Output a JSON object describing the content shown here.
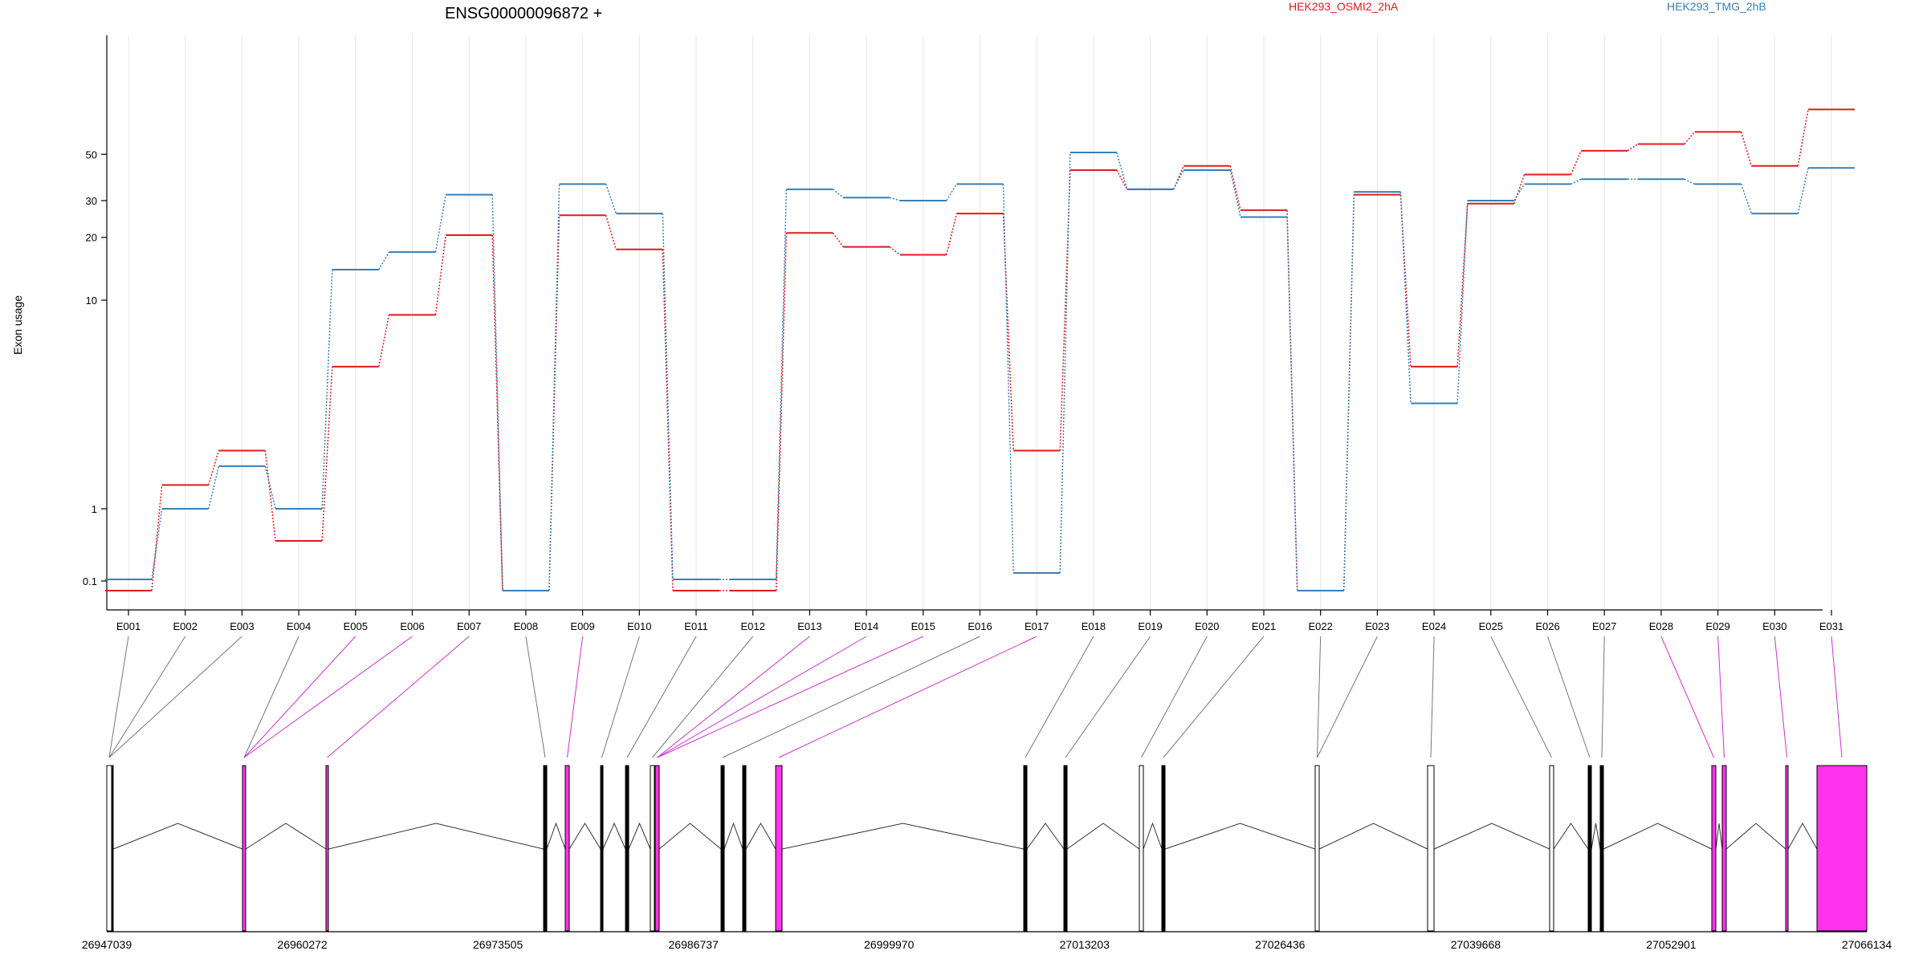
{
  "chart_data": {
    "type": "line",
    "title": "ENSG00000096872 +",
    "ylabel": "Exon usage",
    "y_scale": "log",
    "y_ticks": [
      0.1,
      1,
      10,
      20,
      30,
      50
    ],
    "categories": [
      "E001",
      "E002",
      "E003",
      "E004",
      "E005",
      "E006",
      "E007",
      "E008",
      "E009",
      "E010",
      "E011",
      "E012",
      "E013",
      "E014",
      "E015",
      "E016",
      "E017",
      "E018",
      "E019",
      "E020",
      "E021",
      "E022",
      "E023",
      "E024",
      "E025",
      "E026",
      "E027",
      "E028",
      "E029",
      "E030",
      "E031"
    ],
    "series": [
      {
        "name": "HEK293_OSMI2_2hA",
        "color": "#e41a1c",
        "values": [
          0.0,
          1.3,
          1.9,
          0.6,
          4.8,
          8.5,
          20.5,
          0.0,
          25.5,
          17.5,
          0.0,
          0.0,
          21,
          18,
          16.5,
          26,
          1.9,
          42,
          34,
          44,
          27,
          0.0,
          32,
          4.8,
          29,
          40,
          52,
          56,
          64,
          44,
          82
        ]
      },
      {
        "name": "HEK293_TMG_2hB",
        "color": "#377eb8",
        "values": [
          0.12,
          1.0,
          1.6,
          1.0,
          14,
          17,
          32,
          0.0,
          36,
          26,
          0.12,
          0.12,
          34,
          31,
          30,
          36,
          0.2,
          51,
          34,
          42,
          25,
          0.0,
          33,
          3.2,
          30,
          36,
          38,
          38,
          36,
          26,
          43
        ]
      }
    ],
    "grid": "vertical",
    "legend_position": "top",
    "gene_model": {
      "coordinate_ticks": [
        "26947039",
        "26960272",
        "26973505",
        "26986737",
        "26999970",
        "27013203",
        "27026436",
        "27039668",
        "27052901",
        "27066134"
      ],
      "highlighted_exons": [
        "E005",
        "E006",
        "E007",
        "E009",
        "E013",
        "E014",
        "E015",
        "E017",
        "E028",
        "E029",
        "E030",
        "E031"
      ],
      "highlight_color": "#ff33ee"
    }
  }
}
